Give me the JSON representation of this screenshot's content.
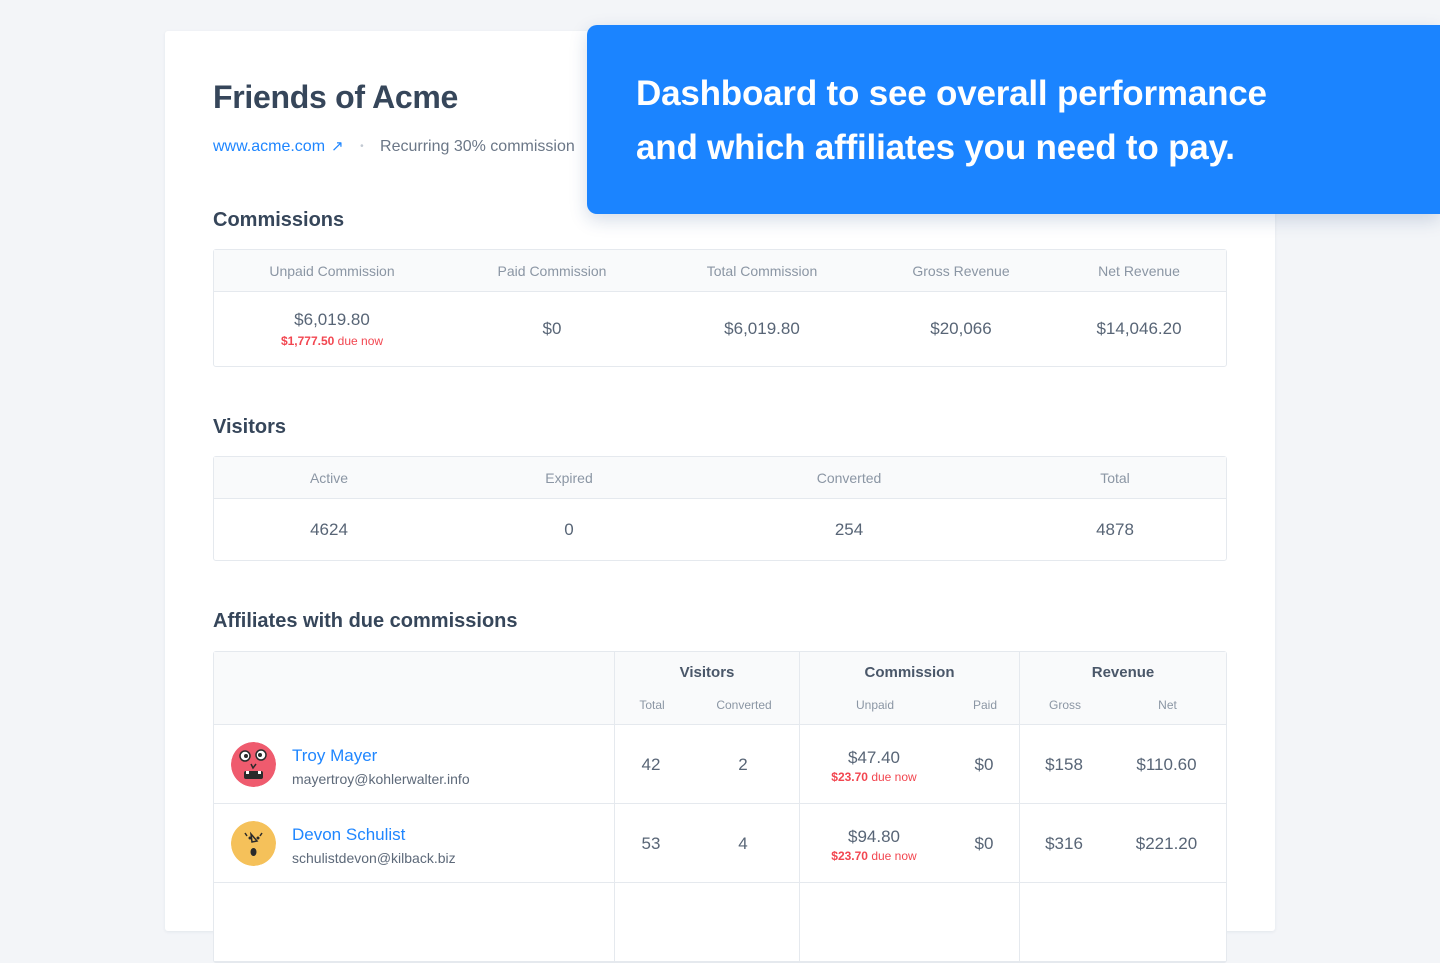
{
  "page": {
    "title": "Friends of Acme",
    "website": "www.acme.com",
    "website_arrow": "↗",
    "commission_terms": "Recurring 30% commission",
    "separator": "•"
  },
  "banner": {
    "line1": "Dashboard to see overall performance",
    "line2": "and which affiliates you need to pay."
  },
  "commissions": {
    "title": "Commissions",
    "headers": [
      "Unpaid Commission",
      "Paid Commission",
      "Total Commission",
      "Gross Revenue",
      "Net Revenue"
    ],
    "unpaid": "$6,019.80",
    "unpaid_due_amount": "$1,777.50",
    "due_label": "due now",
    "paid": "$0",
    "total": "$6,019.80",
    "gross_revenue": "$20,066",
    "net_revenue": "$14,046.20"
  },
  "visitors": {
    "title": "Visitors",
    "headers": [
      "Active",
      "Expired",
      "Converted",
      "Total"
    ],
    "values": [
      "4624",
      "0",
      "254",
      "4878"
    ]
  },
  "affiliates": {
    "title": "Affiliates with due commissions",
    "groups": {
      "visitors": "Visitors",
      "commission": "Commission",
      "revenue": "Revenue"
    },
    "subheaders": {
      "total": "Total",
      "converted": "Converted",
      "unpaid": "Unpaid",
      "paid": "Paid",
      "gross": "Gross",
      "net": "Net"
    },
    "due_label": "due now",
    "rows": [
      {
        "name": "Troy Mayer",
        "email": "mayertroy@kohlerwalter.info",
        "avatar_color": "#ef5b6e",
        "visitors_total": "42",
        "visitors_converted": "2",
        "unpaid": "$47.40",
        "unpaid_due": "$23.70",
        "paid": "$0",
        "gross": "$158",
        "net": "$110.60"
      },
      {
        "name": "Devon Schulist",
        "email": "schulistdevon@kilback.biz",
        "avatar_color": "#f5c15a",
        "visitors_total": "53",
        "visitors_converted": "4",
        "unpaid": "$94.80",
        "unpaid_due": "$23.70",
        "paid": "$0",
        "gross": "$316",
        "net": "$221.20"
      }
    ]
  },
  "colors": {
    "accent": "#1b84ff",
    "link": "#1f86ff",
    "due": "#f24650"
  }
}
